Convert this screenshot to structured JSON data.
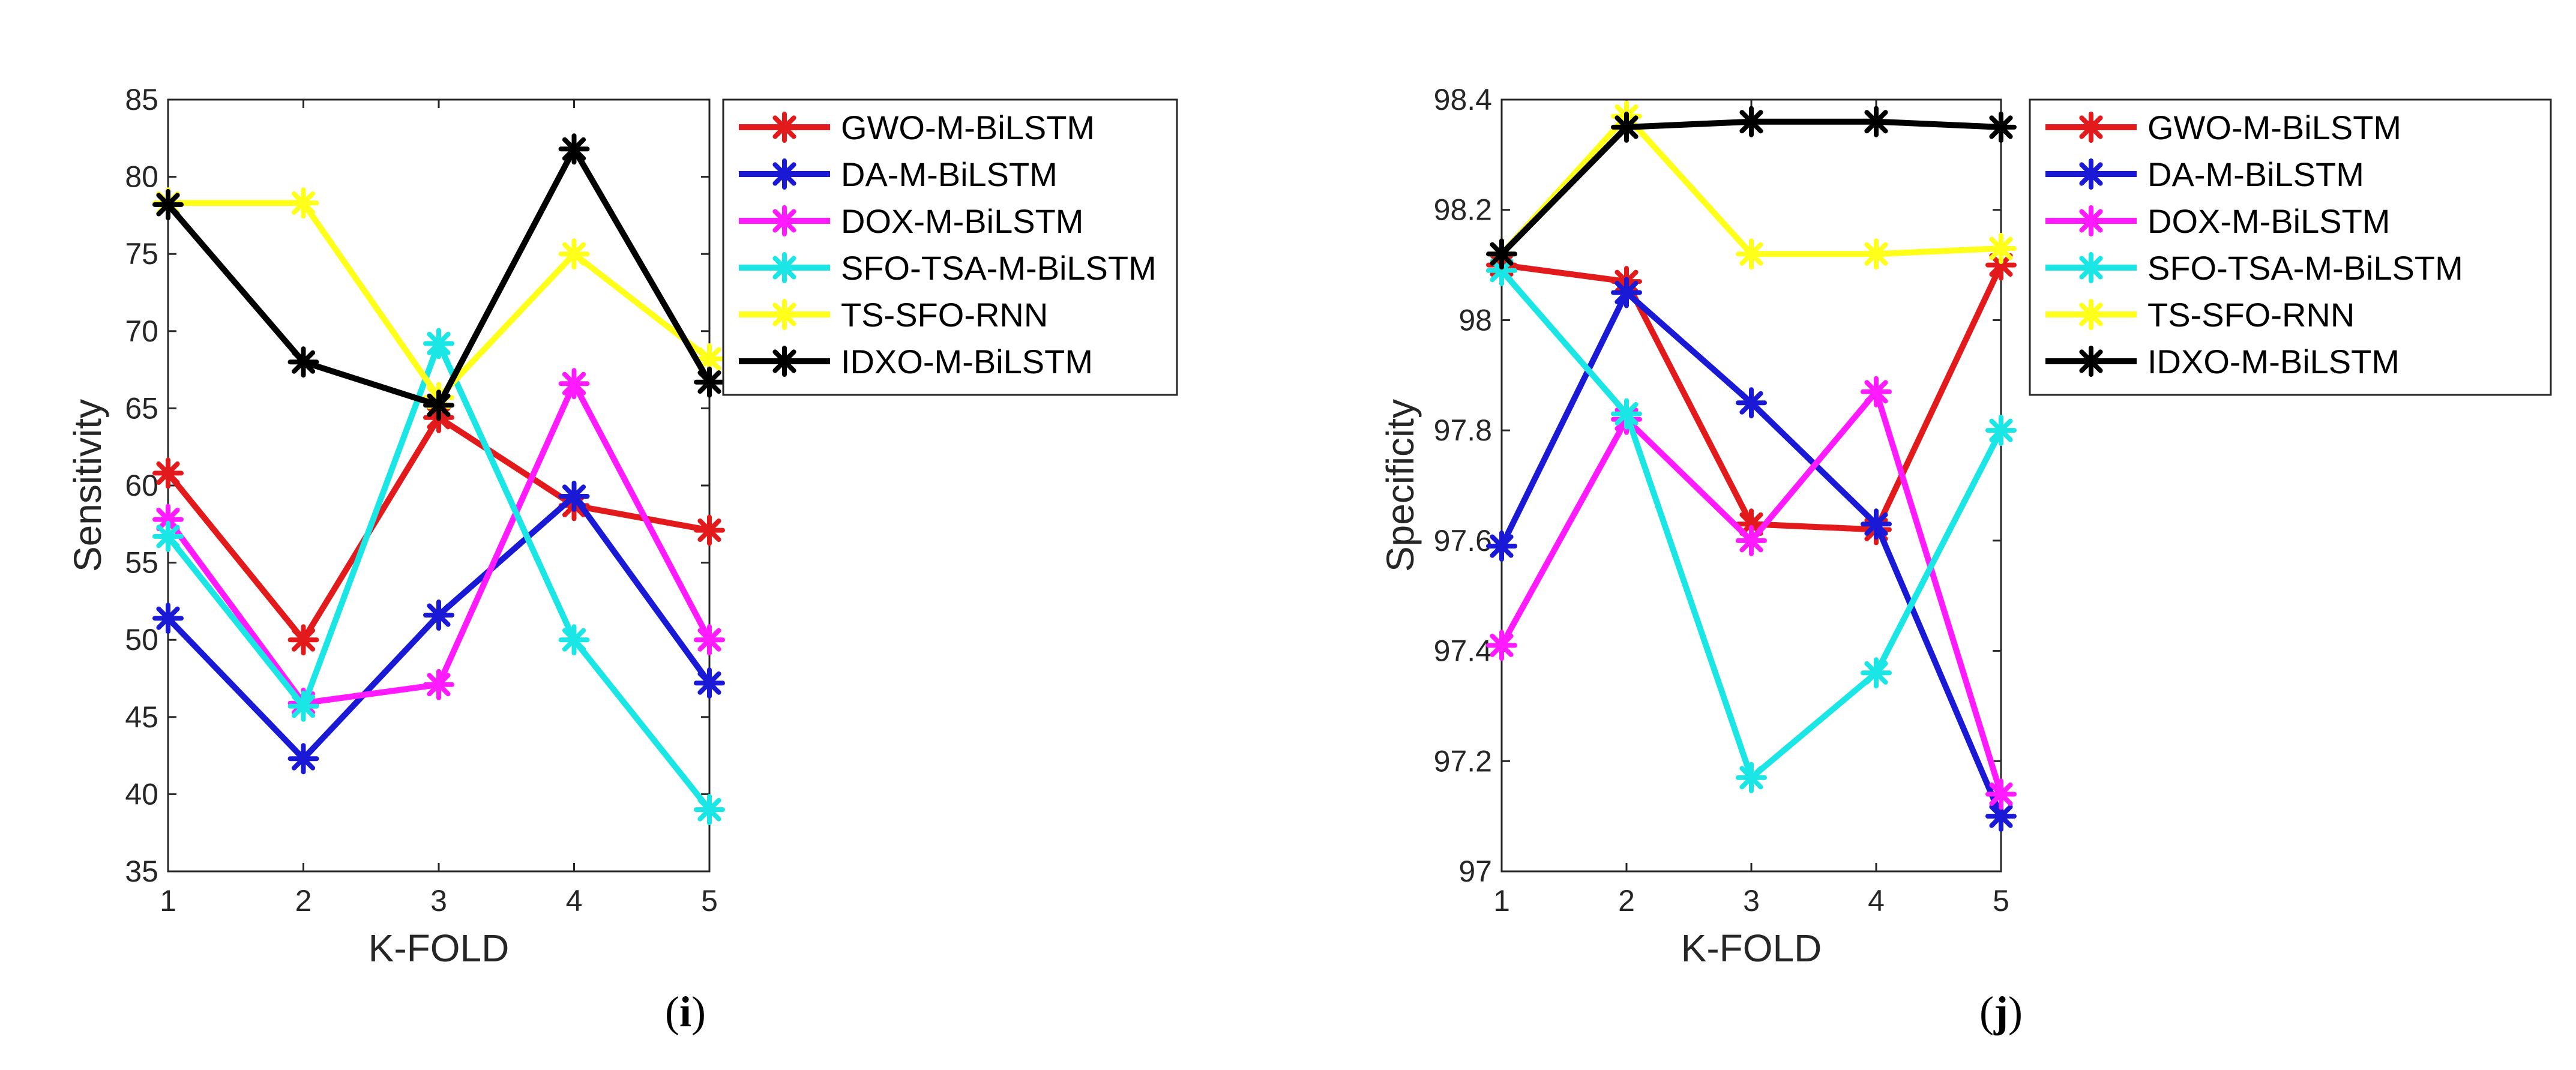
{
  "chart_data": [
    {
      "type": "line",
      "panel_label": {
        "open": "(",
        "letter": "i",
        "close": ")"
      },
      "title": "",
      "xlabel": "K-FOLD",
      "ylabel": "Sensitivity",
      "x": [
        1,
        2,
        3,
        4,
        5
      ],
      "xlim": [
        1,
        5
      ],
      "ylim": [
        35,
        85
      ],
      "xticks": [
        "1",
        "2",
        "3",
        "4",
        "5"
      ],
      "yticks": [
        35,
        40,
        45,
        50,
        55,
        60,
        65,
        70,
        75,
        80,
        85
      ],
      "grid": false,
      "legend_position": "outside-right",
      "series": [
        {
          "name": "GWO-M-BiLSTM",
          "color": "#e31a1c",
          "values": [
            60.8,
            50.0,
            64.4,
            58.7,
            57.1
          ]
        },
        {
          "name": "DA-M-BiLSTM",
          "color": "#1a1ad6",
          "values": [
            51.4,
            42.3,
            51.6,
            59.3,
            47.2
          ]
        },
        {
          "name": "DOX-M-BiLSTM",
          "color": "#ff1aff",
          "values": [
            57.8,
            45.9,
            47.1,
            66.6,
            50.0
          ]
        },
        {
          "name": "SFO-TSA-M-BiLSTM",
          "color": "#1ae6e6",
          "values": [
            56.7,
            45.7,
            69.2,
            50.0,
            39.0
          ]
        },
        {
          "name": "TS-SFO-RNN",
          "color": "#ffff1a",
          "values": [
            78.3,
            78.3,
            65.7,
            75.0,
            68.2
          ]
        },
        {
          "name": "IDXO-M-BiLSTM",
          "color": "#000000",
          "values": [
            78.2,
            68.0,
            65.2,
            81.8,
            66.7
          ]
        }
      ]
    },
    {
      "type": "line",
      "panel_label": {
        "open": "(",
        "letter": "j",
        "close": ")"
      },
      "title": "",
      "xlabel": "K-FOLD",
      "ylabel": "Specificity",
      "x": [
        1,
        2,
        3,
        4,
        5
      ],
      "xlim": [
        1,
        5
      ],
      "ylim": [
        97,
        98.4
      ],
      "xticks": [
        "1",
        "2",
        "3",
        "4",
        "5"
      ],
      "yticks": [
        97,
        97.2,
        97.4,
        97.6,
        97.8,
        98,
        98.2,
        98.4
      ],
      "ytick_labels": [
        "97",
        "97.2",
        "97.4",
        "97.6",
        "97.8",
        "98",
        "98.2",
        "98.4"
      ],
      "grid": false,
      "legend_position": "outside-right",
      "series": [
        {
          "name": "GWO-M-BiLSTM",
          "color": "#e31a1c",
          "values": [
            98.1,
            98.07,
            97.63,
            97.62,
            98.1
          ]
        },
        {
          "name": "DA-M-BiLSTM",
          "color": "#1a1ad6",
          "values": [
            97.59,
            98.05,
            97.85,
            97.63,
            97.1
          ]
        },
        {
          "name": "DOX-M-BiLSTM",
          "color": "#ff1aff",
          "values": [
            97.41,
            97.82,
            97.6,
            97.87,
            97.14
          ]
        },
        {
          "name": "SFO-TSA-M-BiLSTM",
          "color": "#1ae6e6",
          "values": [
            98.09,
            97.83,
            97.17,
            97.36,
            97.8
          ]
        },
        {
          "name": "TS-SFO-RNN",
          "color": "#ffff1a",
          "values": [
            98.12,
            98.37,
            98.12,
            98.12,
            98.13
          ]
        },
        {
          "name": "IDXO-M-BiLSTM",
          "color": "#000000",
          "values": [
            98.12,
            98.35,
            98.36,
            98.36,
            98.35
          ]
        }
      ]
    }
  ]
}
